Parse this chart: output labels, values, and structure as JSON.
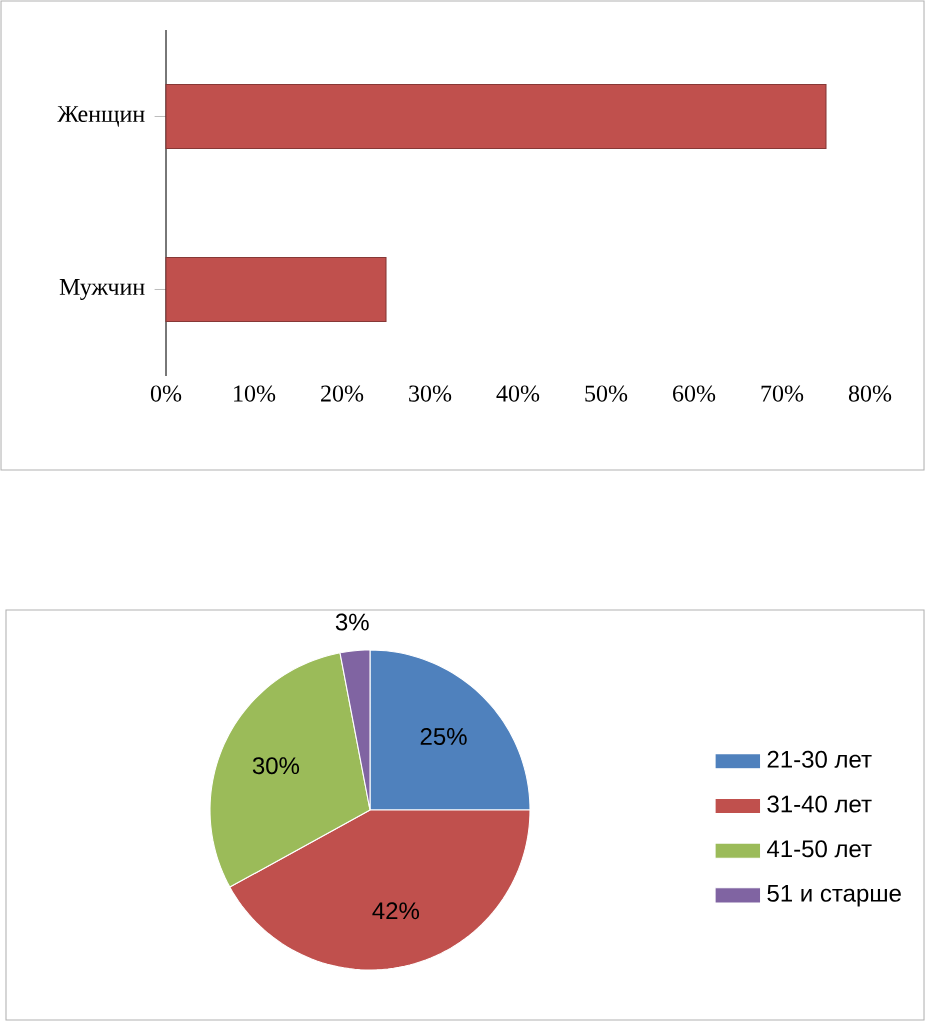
{
  "chart_data": [
    {
      "type": "bar",
      "orientation": "horizontal",
      "categories": [
        "Женщин",
        "Мужчин"
      ],
      "values": [
        75,
        25
      ],
      "color": "#c0504d",
      "xlim": [
        0,
        80
      ],
      "xticks": [
        {
          "value": 0,
          "label": "0%"
        },
        {
          "value": 10,
          "label": "10%"
        },
        {
          "value": 20,
          "label": "20%"
        },
        {
          "value": 30,
          "label": "30%"
        },
        {
          "value": 40,
          "label": "40%"
        },
        {
          "value": 50,
          "label": "50%"
        },
        {
          "value": 60,
          "label": "60%"
        },
        {
          "value": 70,
          "label": "70%"
        },
        {
          "value": 80,
          "label": "80%"
        }
      ]
    },
    {
      "type": "pie",
      "categories": [
        "21-30 лет",
        "31-40 лет",
        "41-50 лет",
        "51 и старше"
      ],
      "values": [
        25,
        42,
        30,
        3
      ],
      "colors": [
        "#4f81bd",
        "#c0504d",
        "#9bbb59",
        "#8064a2"
      ],
      "value_labels": [
        "25%",
        "42%",
        "30%",
        "3%"
      ],
      "legend": "right"
    }
  ]
}
